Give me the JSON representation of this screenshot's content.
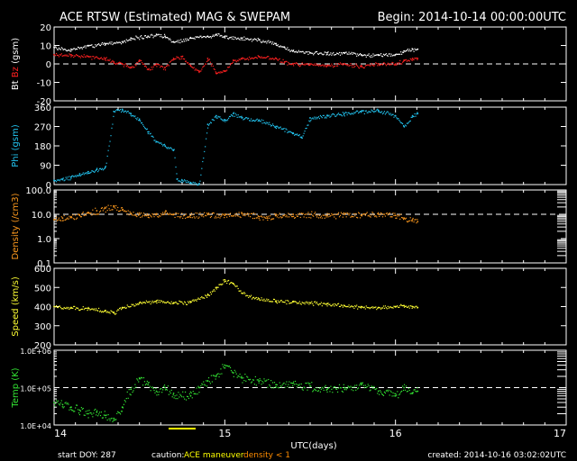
{
  "header": {
    "title": "ACE RTSW (Estimated) MAG & SWEPAM",
    "begin": "Begin: 2014-10-14 00:00:00UTC"
  },
  "footer": {
    "start_doy": "start DOY: 287",
    "caution_label": "caution:",
    "maneuver_label": "ACE maneuver",
    "density_label": "density < 1",
    "created": "created: 2014-10-16 03:02:02UTC"
  },
  "colors": {
    "background": "#000000",
    "axes": "#ffffff",
    "bt": "#ffffff",
    "bz": "#ff2020",
    "phi": "#22c4f0",
    "density": "#ff9a1e",
    "speed": "#ffff33",
    "temp": "#33e533",
    "caution": "#ffff00",
    "density_caution": "#ff8c00"
  },
  "chart_data": {
    "type": "scatter",
    "xlabel": "UTC(days)",
    "x_ticks": [
      "14",
      "15",
      "16",
      "17"
    ],
    "xlim": [
      14,
      17
    ],
    "data_end": 16.13,
    "panels": [
      {
        "id": "mag",
        "ylabel_parts": [
          "Bt",
          "Bz",
          "(gsm)"
        ],
        "ylim": [
          -20,
          20
        ],
        "ticks": [
          "20",
          "10",
          "0",
          "-10",
          "-20"
        ],
        "tick_values": [
          20,
          10,
          0,
          -10,
          -20
        ],
        "dashed_at": [
          0
        ],
        "series": [
          {
            "name": "Bt",
            "color_key": "bt",
            "points": [
              [
                14.0,
                9
              ],
              [
                14.1,
                8
              ],
              [
                14.2,
                10
              ],
              [
                14.3,
                11
              ],
              [
                14.4,
                12
              ],
              [
                14.45,
                14
              ],
              [
                14.55,
                15
              ],
              [
                14.6,
                16
              ],
              [
                14.65,
                15
              ],
              [
                14.7,
                12
              ],
              [
                14.8,
                14
              ],
              [
                14.9,
                15
              ],
              [
                14.95,
                16
              ],
              [
                15.0,
                15
              ],
              [
                15.1,
                14
              ],
              [
                15.2,
                13
              ],
              [
                15.3,
                11
              ],
              [
                15.35,
                9
              ],
              [
                15.4,
                7
              ],
              [
                15.5,
                6
              ],
              [
                15.6,
                6
              ],
              [
                15.7,
                6
              ],
              [
                15.8,
                5
              ],
              [
                15.9,
                5
              ],
              [
                16.0,
                5
              ],
              [
                16.05,
                7
              ],
              [
                16.1,
                8
              ],
              [
                16.13,
                8
              ]
            ]
          },
          {
            "name": "Bz",
            "color_key": "bz",
            "points": [
              [
                14.0,
                5
              ],
              [
                14.1,
                5
              ],
              [
                14.2,
                4
              ],
              [
                14.3,
                3
              ],
              [
                14.35,
                1
              ],
              [
                14.4,
                0
              ],
              [
                14.45,
                -2
              ],
              [
                14.5,
                2
              ],
              [
                14.55,
                -3
              ],
              [
                14.6,
                0
              ],
              [
                14.65,
                -2
              ],
              [
                14.7,
                3
              ],
              [
                14.75,
                4
              ],
              [
                14.8,
                -1
              ],
              [
                14.85,
                -4
              ],
              [
                14.9,
                3
              ],
              [
                14.95,
                -5
              ],
              [
                15.0,
                -4
              ],
              [
                15.05,
                2
              ],
              [
                15.1,
                3
              ],
              [
                15.2,
                4
              ],
              [
                15.3,
                3
              ],
              [
                15.35,
                1
              ],
              [
                15.4,
                0
              ],
              [
                15.5,
                0
              ],
              [
                15.6,
                -1
              ],
              [
                15.7,
                0
              ],
              [
                15.8,
                -1
              ],
              [
                15.9,
                0
              ],
              [
                16.0,
                0
              ],
              [
                16.05,
                2
              ],
              [
                16.1,
                3
              ],
              [
                16.13,
                3
              ]
            ]
          }
        ]
      },
      {
        "id": "phi",
        "ylabel_parts": [
          "Phi",
          "(gsm)"
        ],
        "ylim": [
          0,
          360
        ],
        "ticks": [
          "360",
          "270",
          "180",
          "90",
          "0"
        ],
        "tick_values": [
          360,
          270,
          180,
          90,
          0
        ],
        "dashed_at": [],
        "series": [
          {
            "name": "Phi",
            "color_key": "phi",
            "points": [
              [
                14.0,
                20
              ],
              [
                14.05,
                25
              ],
              [
                14.1,
                35
              ],
              [
                14.15,
                50
              ],
              [
                14.2,
                60
              ],
              [
                14.25,
                70
              ],
              [
                14.3,
                80
              ],
              [
                14.35,
                340
              ],
              [
                14.4,
                350
              ],
              [
                14.45,
                330
              ],
              [
                14.5,
                300
              ],
              [
                14.55,
                245
              ],
              [
                14.6,
                200
              ],
              [
                14.65,
                180
              ],
              [
                14.7,
                160
              ],
              [
                14.72,
                25
              ],
              [
                14.75,
                20
              ],
              [
                14.8,
                10
              ],
              [
                14.85,
                5
              ],
              [
                14.9,
                280
              ],
              [
                14.95,
                320
              ],
              [
                15.0,
                300
              ],
              [
                15.05,
                330
              ],
              [
                15.1,
                310
              ],
              [
                15.2,
                300
              ],
              [
                15.3,
                270
              ],
              [
                15.4,
                240
              ],
              [
                15.45,
                220
              ],
              [
                15.5,
                310
              ],
              [
                15.6,
                320
              ],
              [
                15.7,
                330
              ],
              [
                15.8,
                340
              ],
              [
                15.9,
                345
              ],
              [
                16.0,
                320
              ],
              [
                16.05,
                270
              ],
              [
                16.1,
                320
              ],
              [
                16.13,
                330
              ]
            ]
          }
        ]
      },
      {
        "id": "density",
        "ylabel_parts": [
          "Density",
          "(/cm3)"
        ],
        "ylim": [
          0.1,
          100
        ],
        "scale": "log",
        "ticks": [
          "100.0",
          "10.0",
          "1.0",
          "0.1"
        ],
        "tick_values": [
          100,
          10,
          1,
          0.1
        ],
        "dashed_at": [
          10
        ],
        "series": [
          {
            "name": "Density",
            "color_key": "density",
            "points": [
              [
                14.0,
                6
              ],
              [
                14.05,
                7
              ],
              [
                14.1,
                8
              ],
              [
                14.15,
                9
              ],
              [
                14.2,
                12
              ],
              [
                14.25,
                14
              ],
              [
                14.3,
                18
              ],
              [
                14.35,
                20
              ],
              [
                14.4,
                15
              ],
              [
                14.45,
                11
              ],
              [
                14.5,
                10
              ],
              [
                14.55,
                9
              ],
              [
                14.6,
                10
              ],
              [
                14.65,
                12
              ],
              [
                14.7,
                10
              ],
              [
                14.8,
                9
              ],
              [
                14.9,
                10
              ],
              [
                15.0,
                9
              ],
              [
                15.1,
                11
              ],
              [
                15.2,
                8
              ],
              [
                15.25,
                7
              ],
              [
                15.3,
                9
              ],
              [
                15.4,
                10
              ],
              [
                15.5,
                10
              ],
              [
                15.6,
                9
              ],
              [
                15.7,
                10
              ],
              [
                15.8,
                9
              ],
              [
                15.9,
                10
              ],
              [
                16.0,
                9
              ],
              [
                16.05,
                7
              ],
              [
                16.1,
                6
              ],
              [
                16.13,
                5
              ]
            ]
          }
        ]
      },
      {
        "id": "speed",
        "ylabel_parts": [
          "Speed",
          "(km/s)"
        ],
        "ylim": [
          200,
          600
        ],
        "ticks": [
          "600",
          "500",
          "400",
          "300",
          "200"
        ],
        "tick_values": [
          600,
          500,
          400,
          300,
          200
        ],
        "dashed_at": [],
        "series": [
          {
            "name": "Speed",
            "color_key": "speed",
            "points": [
              [
                14.0,
                400
              ],
              [
                14.1,
                395
              ],
              [
                14.2,
                390
              ],
              [
                14.3,
                380
              ],
              [
                14.35,
                370
              ],
              [
                14.4,
                395
              ],
              [
                14.5,
                420
              ],
              [
                14.6,
                430
              ],
              [
                14.7,
                420
              ],
              [
                14.8,
                425
              ],
              [
                14.9,
                460
              ],
              [
                14.95,
                500
              ],
              [
                15.0,
                540
              ],
              [
                15.05,
                520
              ],
              [
                15.1,
                470
              ],
              [
                15.2,
                440
              ],
              [
                15.3,
                430
              ],
              [
                15.4,
                425
              ],
              [
                15.5,
                420
              ],
              [
                15.6,
                415
              ],
              [
                15.7,
                405
              ],
              [
                15.8,
                400
              ],
              [
                15.9,
                395
              ],
              [
                16.0,
                400
              ],
              [
                16.05,
                405
              ],
              [
                16.1,
                400
              ],
              [
                16.13,
                395
              ]
            ]
          }
        ]
      },
      {
        "id": "temp",
        "ylabel_parts": [
          "Temp",
          "(K)"
        ],
        "ylim": [
          10000,
          1000000
        ],
        "scale": "log",
        "ticks": [
          "1.0E+06",
          "1.0E+05",
          "1.0E+04"
        ],
        "tick_values": [
          1000000,
          100000,
          10000
        ],
        "dashed_at": [
          100000
        ],
        "series": [
          {
            "name": "Temp",
            "color_key": "temp",
            "points": [
              [
                14.0,
                40000
              ],
              [
                14.05,
                35000
              ],
              [
                14.1,
                30000
              ],
              [
                14.15,
                25000
              ],
              [
                14.2,
                20000
              ],
              [
                14.25,
                22000
              ],
              [
                14.3,
                18000
              ],
              [
                14.35,
                15000
              ],
              [
                14.4,
                30000
              ],
              [
                14.45,
                90000
              ],
              [
                14.5,
                180000
              ],
              [
                14.55,
                120000
              ],
              [
                14.6,
                80000
              ],
              [
                14.65,
                100000
              ],
              [
                14.7,
                70000
              ],
              [
                14.8,
                60000
              ],
              [
                14.85,
                100000
              ],
              [
                14.9,
                150000
              ],
              [
                14.95,
                200000
              ],
              [
                15.0,
                400000
              ],
              [
                15.05,
                250000
              ],
              [
                15.1,
                180000
              ],
              [
                15.2,
                150000
              ],
              [
                15.3,
                120000
              ],
              [
                15.4,
                130000
              ],
              [
                15.5,
                110000
              ],
              [
                15.6,
                90000
              ],
              [
                15.7,
                100000
              ],
              [
                15.8,
                120000
              ],
              [
                15.9,
                80000
              ],
              [
                16.0,
                60000
              ],
              [
                16.05,
                100000
              ],
              [
                16.1,
                70000
              ],
              [
                16.13,
                80000
              ]
            ]
          }
        ]
      }
    ]
  }
}
